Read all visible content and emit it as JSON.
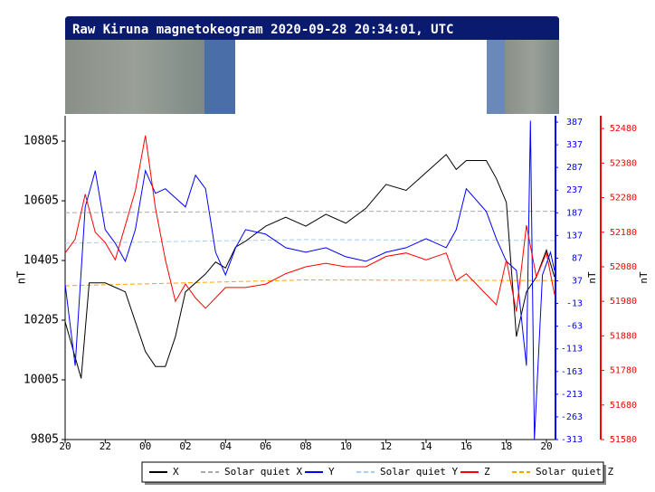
{
  "chart_data": {
    "type": "line",
    "title": "Raw Kiruna magnetokeogram 2020-09-28 20:34:01, UTC",
    "ylabel": "nT",
    "y2label": "nT",
    "y3label": "nT",
    "xlim": [
      0,
      24.45
    ],
    "xticks": [
      {
        "value": 0,
        "label": "20"
      },
      {
        "value": 2,
        "label": "22"
      },
      {
        "value": 4,
        "label": "00"
      },
      {
        "value": 6,
        "label": "02"
      },
      {
        "value": 8,
        "label": "04"
      },
      {
        "value": 10,
        "label": "06"
      },
      {
        "value": 12,
        "label": "08"
      },
      {
        "value": 14,
        "label": "10"
      },
      {
        "value": 16,
        "label": "12"
      },
      {
        "value": 18,
        "label": "14"
      },
      {
        "value": 20,
        "label": "16"
      },
      {
        "value": 22,
        "label": "18"
      },
      {
        "value": 24,
        "label": "20"
      }
    ],
    "ylim": [
      9805,
      10890
    ],
    "yticks": [
      9805,
      10005,
      10205,
      10405,
      10605,
      10805
    ],
    "ycolor": "#000000",
    "y2lim": [
      -313,
      401
    ],
    "y2ticks": [
      -313,
      -263,
      -213,
      -163,
      -113,
      -63,
      -13,
      37,
      87,
      137,
      187,
      237,
      287,
      337,
      387
    ],
    "y2color": "#0000ff",
    "y3lim": [
      51580,
      52517
    ],
    "y3ticks": [
      51580,
      51680,
      51780,
      51880,
      51980,
      52080,
      52180,
      52280,
      52380,
      52480
    ],
    "y3color": "#ff0000",
    "series": [
      {
        "name": "X",
        "color": "#000000",
        "dash": false,
        "axis": "y",
        "x": [
          0,
          0.8,
          1.2,
          2,
          3,
          3.5,
          4,
          4.5,
          5,
          5.5,
          6,
          7,
          7.5,
          8,
          8.5,
          9,
          10,
          11,
          12,
          13,
          14,
          15,
          16,
          17,
          18,
          19,
          19.5,
          20,
          21,
          21.5,
          22,
          22.5,
          23,
          23.5,
          24,
          24.4
        ],
        "values": [
          10200,
          10010,
          10330,
          10330,
          10300,
          10200,
          10100,
          10050,
          10050,
          10150,
          10300,
          10360,
          10400,
          10380,
          10450,
          10470,
          10520,
          10550,
          10520,
          10560,
          10530,
          10580,
          10660,
          10640,
          10700,
          10760,
          10710,
          10740,
          10740,
          10680,
          10600,
          10150,
          10300,
          10350,
          10440,
          10350
        ]
      },
      {
        "name": "Solar quiet X",
        "color": "#aaaaaa",
        "dash": true,
        "axis": "y",
        "x": [
          0,
          12,
          24.45
        ],
        "values": [
          10565,
          10570,
          10570
        ]
      },
      {
        "name": "Y",
        "color": "#0000ff",
        "dash": false,
        "axis": "y2",
        "x": [
          0,
          0.5,
          1,
          1.5,
          2,
          2.5,
          3,
          3.5,
          4,
          4.5,
          5,
          5.5,
          6,
          6.5,
          7,
          7.5,
          8,
          8.5,
          9,
          10,
          11,
          12,
          13,
          14,
          15,
          16,
          17,
          18,
          19,
          19.5,
          20,
          21,
          21.5,
          22,
          22.5,
          23,
          23.2,
          23.4,
          23.8,
          24.2,
          24.4
        ],
        "values": [
          30,
          -150,
          200,
          280,
          150,
          120,
          80,
          150,
          280,
          230,
          240,
          220,
          200,
          270,
          240,
          100,
          50,
          110,
          150,
          140,
          110,
          100,
          110,
          90,
          80,
          100,
          110,
          130,
          110,
          150,
          240,
          190,
          130,
          80,
          60,
          -150,
          390,
          -313,
          50,
          100,
          60
        ]
      },
      {
        "name": "Solar quiet Y",
        "color": "#aaccee",
        "dash": true,
        "axis": "y2",
        "x": [
          0,
          12,
          24.45
        ],
        "values": [
          120,
          128,
          126
        ]
      },
      {
        "name": "Z",
        "color": "#ff0000",
        "dash": false,
        "axis": "y3",
        "x": [
          0,
          0.5,
          1,
          1.5,
          2,
          2.5,
          3,
          3.5,
          4,
          4.5,
          5,
          5.5,
          6,
          6.5,
          7,
          7.5,
          8,
          9,
          10,
          11,
          12,
          13,
          14,
          15,
          16,
          17,
          18,
          19,
          19.5,
          20,
          21,
          21.5,
          22,
          22.5,
          23,
          23.5,
          24,
          24.4
        ],
        "values": [
          52120,
          52160,
          52290,
          52180,
          52150,
          52100,
          52200,
          52300,
          52460,
          52250,
          52100,
          51980,
          52030,
          51990,
          51960,
          51990,
          52020,
          52020,
          52030,
          52060,
          52080,
          52090,
          52080,
          52080,
          52110,
          52120,
          52100,
          52120,
          52040,
          52060,
          52000,
          51970,
          52100,
          51950,
          52200,
          52050,
          52120,
          52000
        ]
      },
      {
        "name": "Solar quiet Z",
        "color": "#ffa500",
        "dash": true,
        "axis": "y3",
        "x": [
          0,
          12,
          24.45
        ],
        "values": [
          52025,
          52042,
          52040
        ]
      }
    ]
  }
}
